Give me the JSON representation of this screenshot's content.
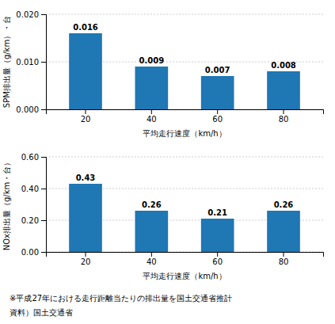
{
  "chart_data": [
    {
      "type": "bar",
      "categories": [
        "20",
        "40",
        "60",
        "80"
      ],
      "values": [
        0.016,
        0.009,
        0.007,
        0.008
      ],
      "x_label": "平均走行速度（km/h）",
      "y_label": "SPM排出量（g/km）・台",
      "ylim": [
        0.0,
        0.02
      ],
      "yticks": [
        {
          "value": 0.0,
          "label": "0.000"
        },
        {
          "value": 0.01,
          "label": "0.010"
        },
        {
          "value": 0.02,
          "label": "0.020"
        }
      ],
      "grid": true,
      "data_labels": true
    },
    {
      "type": "bar",
      "categories": [
        "20",
        "40",
        "60",
        "80"
      ],
      "values": [
        0.43,
        0.26,
        0.21,
        0.26
      ],
      "x_label": "平均走行速度（km/h）",
      "y_label": "NOx排出量（g/km・台）",
      "ylim": [
        0.0,
        0.6
      ],
      "yticks": [
        {
          "value": 0.0,
          "label": "0.00"
        },
        {
          "value": 0.2,
          "label": "0.20"
        },
        {
          "value": 0.4,
          "label": "0.40"
        },
        {
          "value": 0.6,
          "label": "0.60"
        }
      ],
      "grid": true,
      "data_labels": true,
      "annotations": [
        "※平成27年における走行距離当たりの排出量を国土交通省推計",
        "資料）国土交通省"
      ]
    }
  ]
}
